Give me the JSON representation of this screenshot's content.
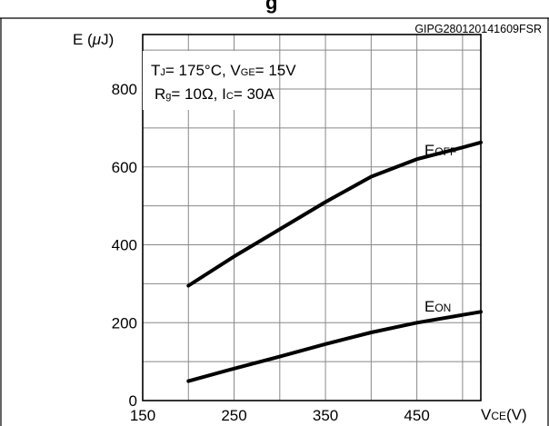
{
  "figure_id": "GIPG280120141609FSR",
  "title_fragment": "g",
  "chart_data": {
    "type": "line",
    "ylabel": {
      "main": "E (",
      "mu": "μ",
      "rest": "J)"
    },
    "xlabel": {
      "main": "V",
      "sub": "CE",
      "rest": "(V)"
    },
    "xlim": [
      150,
      520
    ],
    "ylim": [
      0,
      940
    ],
    "x_ticks": [
      150,
      250,
      350,
      450
    ],
    "y_ticks": [
      0,
      200,
      400,
      600,
      800
    ],
    "x_grid": [
      200,
      250,
      300,
      350,
      400,
      450,
      500
    ],
    "y_grid": [
      100,
      200,
      300,
      400,
      500,
      600,
      700,
      800,
      900
    ],
    "conditions": {
      "line1": {
        "t": "T",
        "t_sub": "J",
        "t_val": "= 175°C, V",
        "v_sub": "GE",
        "v_val": "= 15V"
      },
      "line2": {
        "r": "R",
        "r_sub": "g",
        "r_val": "= 10Ω, I",
        "i_sub": "C",
        "i_val": "= 30A"
      }
    },
    "series": [
      {
        "name": "E",
        "name_sub": "OFF",
        "x": [
          200,
          250,
          300,
          350,
          400,
          450,
          500,
          520
        ],
        "y": [
          295,
          370,
          440,
          510,
          575,
          620,
          650,
          663
        ]
      },
      {
        "name": "E",
        "name_sub": "ON",
        "x": [
          200,
          250,
          300,
          350,
          400,
          450,
          500,
          520
        ],
        "y": [
          50,
          82,
          113,
          145,
          175,
          200,
          220,
          228
        ]
      }
    ]
  }
}
